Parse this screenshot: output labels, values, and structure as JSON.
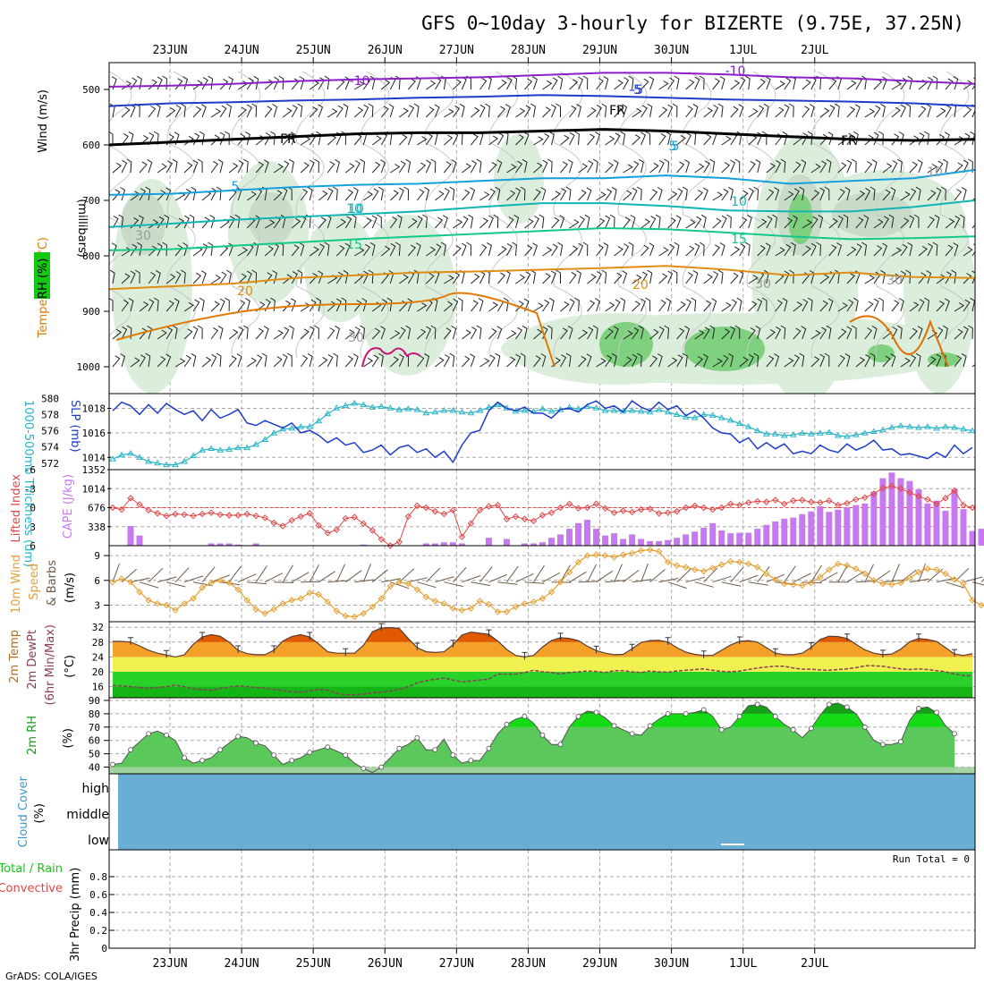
{
  "title": "GFS 0~10day 3-hourly for BIZERTE (9.75E, 37.25N)",
  "footer": "GrADS: COLA/IGES",
  "dates": [
    "23JUN",
    "24JUN",
    "25JUN",
    "26JUN",
    "27JUN",
    "28JUN",
    "29JUN",
    "30JUN",
    "1JUL",
    "2JUL"
  ],
  "colors": {
    "purple": "#8c1ec8",
    "blue": "#1e3cc8",
    "cyan": "#14a0dc",
    "teal": "#14b4b4",
    "green": "#14c88c",
    "orange": "#e18c14",
    "darkorange": "#e16e00",
    "magenta": "#c8147a",
    "cloud": "#6aaed6"
  },
  "upper": {
    "ylabel": "(millibars)",
    "legend_wind": "Wind (m/s)",
    "legend_temp": "Temperature (°C)",
    "legend_rh": "RH (%)",
    "yticks": [
      500,
      600,
      700,
      800,
      900,
      1000
    ],
    "contour_labels": [
      "-10",
      "-10",
      "-5",
      "-5",
      "FR",
      "FR",
      "FR",
      "5",
      "5",
      "5",
      "10",
      "10",
      "10",
      "15",
      "15",
      "20",
      "20",
      "30",
      "30",
      "30",
      "30",
      "10"
    ]
  },
  "slp_panel": {
    "label_thk": "1000-500mb Thickness (dm)",
    "label_slp": "SLP (mb)",
    "thk_ticks": [
      "580",
      "578",
      "576",
      "574",
      "572"
    ],
    "slp_ticks": [
      "1018",
      "1016",
      "1014"
    ]
  },
  "cape_panel": {
    "label_li": "Lifted Index",
    "label_cape": "CAPE (J/kg)",
    "li_ticks": [
      "-6",
      "-3",
      "0",
      "3",
      "6"
    ],
    "cape_ticks": [
      "1352",
      "1014",
      "676",
      "338"
    ]
  },
  "wind_panel": {
    "label_a": "10m Wind",
    "label_b": "Speed",
    "label_c": "& Barbs",
    "unit": "(m/s)",
    "ticks": [
      "9",
      "6",
      "3"
    ]
  },
  "temp_panel": {
    "label_a": "2m Temp",
    "label_b": "2m DewPt",
    "label_c": "(6hr Min/Max)",
    "unit": "(°C)",
    "ticks": [
      "32",
      "28",
      "24",
      "20",
      "16"
    ]
  },
  "rh_panel": {
    "label": "2m RH",
    "unit": "(%)",
    "ticks": [
      "90",
      "80",
      "70",
      "60",
      "50",
      "40"
    ]
  },
  "cloud_panel": {
    "label": "Cloud Cover",
    "unit": "(%)",
    "levels": [
      "high",
      "middle",
      "low"
    ]
  },
  "precip_panel": {
    "label_a": "Total / Rain",
    "label_b": "Convective",
    "label_c": "3hr Precip (mm)",
    "run_total": "Run Total = 0",
    "ticks": [
      "0.8",
      "0.6",
      "0.4",
      "0.2",
      "0"
    ]
  },
  "chart_data": [
    {
      "type": "line",
      "name": "SLP and 1000-500mb thickness",
      "series": [
        {
          "name": "SLP (mb)",
          "y_unit": "mb",
          "ylim": [
            1013,
            1019.2
          ],
          "values": [
            1017.8,
            1018.5,
            1018.2,
            1017.5,
            1018.3,
            1017.6,
            1018.4,
            1017.9,
            1017.5,
            1017.8,
            1017.0,
            1017.9,
            1017.2,
            1017.5,
            1017.9,
            1016.8,
            1016.6,
            1017.0,
            1016.7,
            1016.4,
            1016.8,
            1016.0,
            1016.2,
            1015.8,
            1015.2,
            1015.6,
            1015.0,
            1015.2,
            1014.4,
            1014.6,
            1015.0,
            1014.2,
            1014.8,
            1015.0,
            1014.4,
            1014.7,
            1014.0,
            1014.5,
            1013.6,
            1015.0,
            1016.0,
            1016.2,
            1017.8,
            1018.5,
            1018.0,
            1017.8,
            1018.1,
            1017.6,
            1017.6,
            1017.2,
            1017.9,
            1018.0,
            1017.7,
            1018.3,
            1018.6,
            1018.0,
            1018.2,
            1017.7,
            1018.6,
            1018.1,
            1017.8,
            1018.5,
            1017.9,
            1018.2,
            1017.4,
            1017.8,
            1017.2,
            1016.4,
            1016.0,
            1015.9,
            1015.2,
            1015.6,
            1014.7,
            1015.2,
            1014.7,
            1015.1,
            1014.3,
            1014.5,
            1014.3,
            1015.0,
            1014.6,
            1014.4,
            1015.1,
            1014.6,
            1014.9,
            1015.4,
            1014.6,
            1014.7,
            1014.2,
            1014.3,
            1014.1,
            1013.9,
            1014.4,
            1014.0,
            1015.0,
            1014.3,
            1014.8
          ]
        },
        {
          "name": "1000-500mb Thickness (dm)",
          "y_unit": "dm",
          "ylim": [
            571.2,
            580.6
          ],
          "values": [
            572.5,
            573.0,
            573.2,
            572.7,
            572.2,
            572.0,
            571.8,
            571.8,
            572.2,
            572.9,
            573.6,
            573.8,
            573.6,
            573.7,
            573.9,
            573.9,
            574.3,
            574.9,
            575.7,
            576.2,
            576.3,
            576.5,
            576.5,
            577.2,
            578.1,
            578.8,
            579.1,
            579.4,
            579.2,
            578.9,
            579.0,
            578.8,
            578.6,
            578.7,
            578.6,
            578.2,
            578.3,
            578.5,
            578.5,
            578.3,
            578.2,
            578.5,
            578.9,
            579.2,
            578.8,
            578.4,
            578.5,
            578.4,
            578.7,
            578.4,
            578.6,
            578.9,
            578.7,
            579.0,
            578.8,
            578.5,
            578.5,
            578.4,
            578.5,
            578.4,
            578.3,
            578.6,
            578.3,
            578.0,
            577.7,
            577.6,
            578.0,
            577.9,
            577.6,
            577.3,
            576.9,
            576.5,
            576.0,
            575.6,
            575.6,
            575.4,
            575.5,
            575.7,
            575.6,
            575.7,
            575.8,
            575.4,
            575.3,
            575.5,
            575.7,
            575.9,
            576.1,
            576.4,
            576.6,
            576.5,
            576.4,
            576.5,
            576.3,
            576.5,
            576.4,
            576.2,
            576.0
          ]
        }
      ]
    },
    {
      "type": "bar",
      "name": "CAPE and Lifted Index",
      "series": [
        {
          "name": "CAPE (J/kg)",
          "y_unit": "J/kg",
          "ylim": [
            0,
            1352
          ],
          "values": [
            0,
            0,
            350,
            180,
            0,
            0,
            0,
            0,
            0,
            0,
            0,
            40,
            40,
            40,
            20,
            0,
            40,
            0,
            0,
            0,
            0,
            0,
            0,
            0,
            0,
            0,
            0,
            0,
            20,
            0,
            0,
            0,
            0,
            0,
            0,
            40,
            40,
            60,
            60,
            40,
            0,
            0,
            140,
            0,
            120,
            0,
            40,
            40,
            60,
            140,
            200,
            300,
            400,
            460,
            300,
            180,
            220,
            120,
            200,
            120,
            80,
            80,
            100,
            140,
            200,
            250,
            320,
            400,
            270,
            220,
            230,
            230,
            300,
            370,
            430,
            480,
            500,
            560,
            610,
            700,
            600,
            640,
            680,
            720,
            750,
            960,
            1200,
            1300,
            1200,
            1150,
            1000,
            750,
            800,
            620,
            1000,
            650,
            260,
            300
          ]
        },
        {
          "name": "Lifted Index",
          "y_unit": "",
          "ylim": [
            6,
            -6
          ],
          "values": [
            0.0,
            0.3,
            -1.5,
            -0.5,
            0.4,
            0.9,
            1.3,
            1.0,
            1.1,
            1.3,
            1.0,
            0.8,
            1.1,
            1.2,
            1.2,
            1.0,
            1.3,
            1.6,
            2.4,
            2.9,
            2.0,
            1.4,
            0.9,
            2.8,
            4.0,
            3.5,
            1.7,
            1.5,
            2.5,
            3.6,
            5.0,
            6.0,
            5.4,
            1.4,
            -0.3,
            0.0,
            0.6,
            1.0,
            0.4,
            4.6,
            2.5,
            0.4,
            -0.2,
            -0.4,
            1.8,
            1.4,
            1.8,
            2.1,
            1.2,
            0.8,
            0.0,
            -0.6,
            0.1,
            0.0,
            -0.6,
            0.1,
            0.8,
            0.5,
            0.7,
            0.3,
            0.2,
            0.9,
            0.8,
            0.6,
            0.0,
            -0.3,
            0.0,
            0.3,
            0.0,
            -0.6,
            -0.4,
            -0.8,
            -1.0,
            -0.9,
            -1.2,
            -0.6,
            -1.1,
            -1.2,
            -0.9,
            -0.8,
            -1.1,
            -0.4,
            -0.7,
            -1.3,
            -1.6,
            -2.2,
            -3.1,
            -3.4,
            -3.0,
            -2.4,
            -1.8,
            -1.3,
            -0.6,
            -1.5,
            -2.7,
            -0.4,
            0.0
          ]
        }
      ]
    },
    {
      "type": "line",
      "name": "10m Wind Speed",
      "series": [
        {
          "name": "10m Wind Speed (m/s)",
          "y_unit": "m/s",
          "ylim": [
            1,
            10.2
          ],
          "values": [
            5.8,
            6.2,
            5.8,
            4.6,
            3.6,
            3.2,
            3.0,
            2.4,
            3.2,
            3.8,
            5.1,
            5.7,
            6.0,
            5.7,
            4.9,
            3.6,
            2.5,
            2.0,
            2.5,
            3.2,
            3.6,
            3.8,
            4.5,
            4.3,
            3.4,
            2.3,
            1.7,
            1.6,
            2.0,
            2.8,
            3.8,
            5.3,
            5.8,
            5.6,
            4.9,
            4.0,
            3.5,
            3.2,
            2.6,
            2.4,
            2.6,
            3.5,
            3.1,
            2.2,
            2.2,
            2.8,
            3.2,
            3.4,
            3.8,
            4.6,
            5.8,
            7.0,
            8.2,
            9.0,
            9.1,
            9.0,
            8.8,
            9.1,
            9.3,
            9.6,
            9.7,
            9.5,
            8.2,
            7.8,
            7.6,
            7.3,
            7.1,
            7.5,
            7.9,
            8.3,
            8.2,
            8.0,
            7.6,
            6.8,
            6.1,
            5.6,
            5.5,
            5.4,
            5.7,
            6.4,
            7.3,
            8.0,
            7.8,
            7.4,
            6.8,
            6.0,
            5.6,
            5.5,
            5.7,
            6.3,
            7.0,
            7.4,
            7.3,
            6.8,
            6.1,
            5.6,
            3.6,
            3.0,
            2.9,
            3.0
          ]
        }
      ]
    },
    {
      "type": "area",
      "name": "2m Temperature and Dew Point",
      "series": [
        {
          "name": "2m Temp (°C)",
          "y_unit": "°C",
          "ylim": [
            13,
            33.5
          ],
          "values": [
            28.2,
            28.2,
            28.0,
            27.0,
            25.8,
            25.0,
            24.5,
            24.0,
            24.6,
            27.4,
            29.4,
            30.0,
            29.6,
            28.0,
            25.8,
            24.9,
            24.6,
            24.6,
            25.8,
            28.3,
            29.5,
            30.0,
            29.4,
            27.5,
            25.4,
            25.0,
            25.0,
            25.0,
            27.1,
            30.8,
            31.8,
            31.9,
            31.7,
            29.0,
            26.5,
            25.4,
            25.2,
            25.4,
            27.3,
            29.9,
            30.7,
            30.4,
            30.1,
            28.3,
            26.0,
            24.4,
            24.0,
            24.4,
            26.7,
            28.4,
            29.2,
            29.0,
            28.4,
            26.9,
            25.7,
            25.0,
            24.6,
            24.7,
            26.2,
            27.9,
            28.4,
            28.5,
            28.0,
            26.5,
            25.3,
            24.7,
            24.4,
            24.4,
            25.8,
            27.2,
            28.2,
            28.4,
            28.0,
            26.5,
            25.0,
            24.6,
            24.6,
            25.0,
            26.6,
            28.7,
            29.6,
            29.5,
            29.0,
            27.4,
            25.9,
            25.0,
            24.6,
            24.8,
            26.1,
            28.1,
            29.0,
            28.7,
            28.2,
            26.5,
            24.8,
            24.4,
            24.9
          ]
        },
        {
          "name": "2m DewPt (°C)",
          "y_unit": "°C",
          "ylim": [
            13,
            33.5
          ],
          "values": [
            16.3,
            16.2,
            16.0,
            15.8,
            15.5,
            15.8,
            16.0,
            16.4,
            16.0,
            15.4,
            15.2,
            15.0,
            15.5,
            15.9,
            16.2,
            16.0,
            15.8,
            15.6,
            15.2,
            15.0,
            14.6,
            14.5,
            14.8,
            15.3,
            15.0,
            14.2,
            13.8,
            13.8,
            14.0,
            14.3,
            14.5,
            14.8,
            15.2,
            16.0,
            17.0,
            17.6,
            18.0,
            18.3,
            17.8,
            17.3,
            17.5,
            17.8,
            18.0,
            19.4,
            19.4,
            19.4,
            19.8,
            20.4,
            20.0,
            19.8,
            19.4,
            19.8,
            20.0,
            20.2,
            20.1,
            19.8,
            20.3,
            20.3,
            20.0,
            19.8,
            20.2,
            20.0,
            19.9,
            20.2,
            20.4,
            20.6,
            20.8,
            20.4,
            20.1,
            20.0,
            20.2,
            20.6,
            21.0,
            21.3,
            21.5,
            21.5,
            21.0,
            20.7,
            20.7,
            20.5,
            20.4,
            20.6,
            20.8,
            21.1,
            21.6,
            21.6,
            21.5,
            21.1,
            20.8,
            20.6,
            20.8,
            20.6,
            20.3,
            20.0,
            19.4,
            19.0,
            18.9
          ]
        }
      ]
    },
    {
      "type": "area",
      "name": "2m RH",
      "series": [
        {
          "name": "2m RH (%)",
          "y_unit": "%",
          "ylim": [
            35,
            92
          ],
          "values": [
            42,
            43,
            53,
            59,
            65,
            67,
            64,
            60,
            47,
            43,
            45,
            47,
            53,
            58,
            63,
            62,
            58,
            56,
            49,
            42,
            45,
            47,
            51,
            53,
            55,
            52,
            49,
            43,
            39,
            36,
            40,
            47,
            54,
            57,
            62,
            53,
            53,
            61,
            49,
            43,
            45,
            45,
            54,
            65,
            72,
            76,
            78,
            73,
            64,
            57,
            57,
            70,
            78,
            82,
            81,
            77,
            71,
            68,
            65,
            64,
            71,
            76,
            80,
            80,
            80,
            81,
            83,
            78,
            68,
            70,
            78,
            86,
            87,
            85,
            78,
            72,
            68,
            62,
            69,
            79,
            87,
            88,
            85,
            80,
            70,
            60,
            57,
            57,
            59,
            75,
            84,
            85,
            81,
            71,
            65
          ]
        }
      ]
    }
  ]
}
